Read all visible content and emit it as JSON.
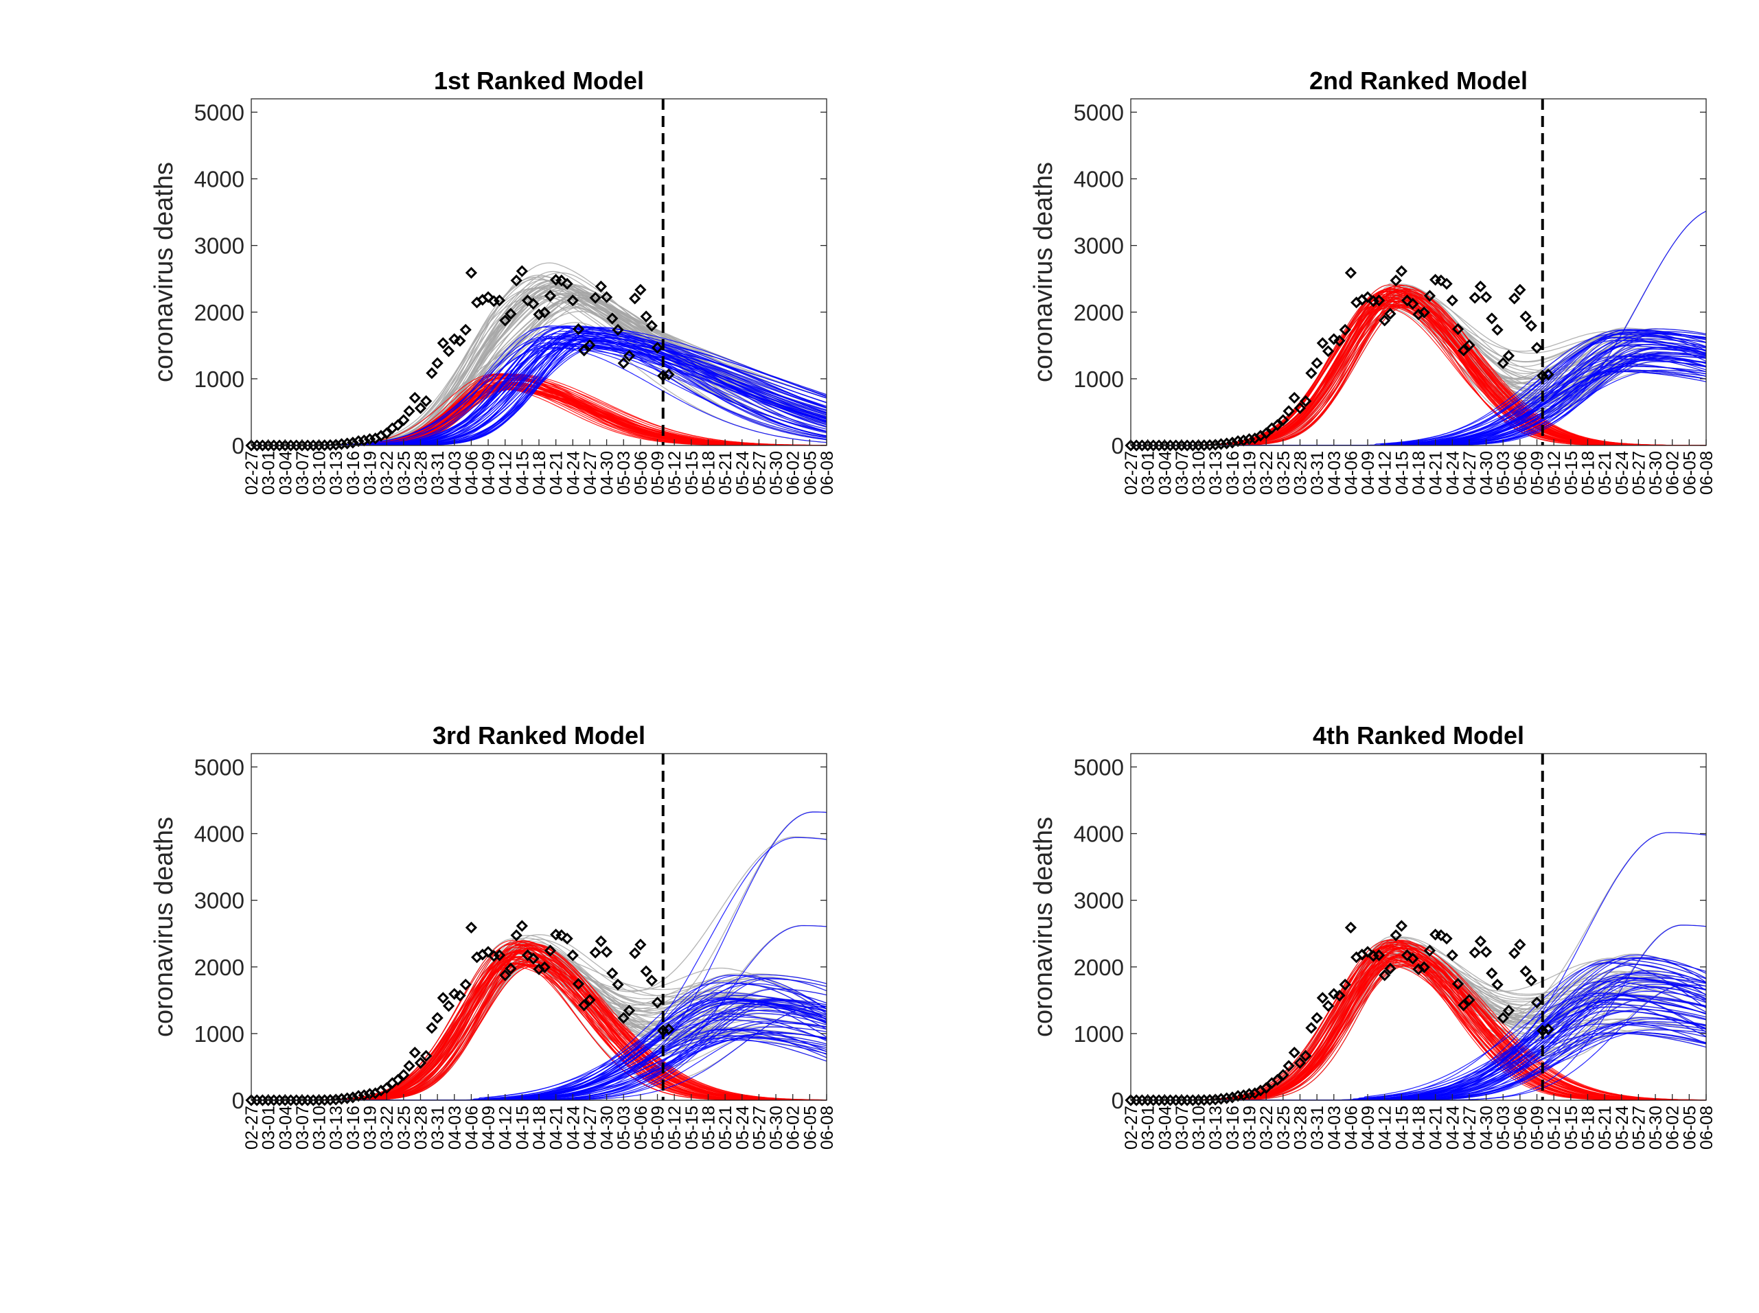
{
  "figure": {
    "background": "#ffffff",
    "colors": {
      "total": "#a6a6a6",
      "wave1": "#ff0000",
      "wave2": "#0000ff",
      "observed": "#000000",
      "cutoff": "#000000"
    }
  },
  "chart_data": [
    {
      "type": "line",
      "title": "1st Ranked Model",
      "ylabel": "coronavirus deaths",
      "xlabel": "",
      "ylim": [
        0,
        5200
      ],
      "yticks": [
        0,
        1000,
        2000,
        3000,
        4000,
        5000
      ],
      "xticklabels": [
        "02-27",
        "03-01",
        "03-04",
        "03-07",
        "03-10",
        "03-13",
        "03-16",
        "03-19",
        "03-22",
        "03-25",
        "03-28",
        "03-31",
        "04-03",
        "04-06",
        "04-09",
        "04-12",
        "04-15",
        "04-18",
        "04-21",
        "04-24",
        "04-27",
        "04-30",
        "05-03",
        "05-06",
        "05-09",
        "05-12",
        "05-15",
        "05-18",
        "05-21",
        "05-24",
        "05-27",
        "05-30",
        "06-02",
        "06-05",
        "06-08"
      ],
      "cutoff_day": 73,
      "grid": false,
      "legend": "none",
      "ensemble_size": 55,
      "series": [
        {
          "role": "wave1",
          "color": "#ff0000",
          "peak_day": 45,
          "peak_value": 930,
          "peak_spread": [
            820,
            1080
          ],
          "rise_width": 8,
          "decay_width": 14,
          "extra_tail_frac": 0.0
        },
        {
          "role": "wave2",
          "color": "#0000ff",
          "onset_day": 0,
          "peak_day": 57,
          "peak_value": 1620,
          "peak_spread": [
            1450,
            1800
          ],
          "rise_width": 10,
          "decay_width": 26,
          "extra_tail_frac": 0.0
        }
      ],
      "observed": {
        "day": [
          0,
          1,
          2,
          3,
          4,
          5,
          6,
          7,
          8,
          9,
          10,
          11,
          12,
          13,
          14,
          15,
          16,
          17,
          18,
          19,
          20,
          21,
          22,
          23,
          24,
          25,
          26,
          27,
          28,
          29,
          30,
          31,
          32,
          33,
          34,
          35,
          36,
          37,
          38,
          39,
          40,
          41,
          42,
          43,
          44,
          45,
          46,
          47,
          48,
          49,
          50,
          51,
          52,
          53,
          54,
          55,
          56,
          57,
          58,
          59,
          60,
          61,
          62,
          63,
          64,
          65,
          66,
          67,
          68,
          69,
          70,
          71,
          72,
          73,
          74
        ],
        "value": [
          0,
          0,
          0,
          0,
          0,
          0,
          0,
          0,
          0,
          0,
          0,
          0,
          1,
          2,
          5,
          10,
          21,
          30,
          43,
          65,
          75,
          95,
          105,
          145,
          183,
          258,
          306,
          380,
          515,
          715,
          560,
          665,
          1085,
          1235,
          1535,
          1415,
          1595,
          1570,
          1735,
          2590,
          2145,
          2185,
          2225,
          2165,
          2175,
          1875,
          1975,
          2475,
          2615,
          2175,
          2125,
          1965,
          1995,
          2245,
          2485,
          2475,
          2425,
          2175,
          1745,
          1425,
          1505,
          2215,
          2385,
          2225,
          1905,
          1735,
          1235,
          1345,
          2205,
          2335,
          1935,
          1795,
          1465,
          1045,
          1065
        ]
      }
    },
    {
      "type": "line",
      "title": "2nd Ranked Model",
      "ylabel": "coronavirus deaths",
      "xlabel": "",
      "ylim": [
        0,
        5200
      ],
      "yticks": [
        0,
        1000,
        2000,
        3000,
        4000,
        5000
      ],
      "xticklabels": [
        "02-27",
        "03-01",
        "03-04",
        "03-07",
        "03-10",
        "03-13",
        "03-16",
        "03-19",
        "03-22",
        "03-25",
        "03-28",
        "03-31",
        "04-03",
        "04-06",
        "04-09",
        "04-12",
        "04-15",
        "04-18",
        "04-21",
        "04-24",
        "04-27",
        "04-30",
        "05-03",
        "05-06",
        "05-09",
        "05-12",
        "05-15",
        "05-18",
        "05-21",
        "05-24",
        "05-27",
        "05-30",
        "06-02",
        "06-05",
        "06-08"
      ],
      "cutoff_day": 73,
      "grid": false,
      "legend": "none",
      "ensemble_size": 55,
      "series": [
        {
          "role": "wave1",
          "color": "#ff0000",
          "peak_day": 47,
          "peak_value": 2250,
          "peak_spread": [
            2050,
            2420
          ],
          "rise_width": 9,
          "decay_width": 12,
          "extra_tail_frac": 0.0
        },
        {
          "role": "wave2",
          "color": "#0000ff",
          "onset_day": 45,
          "peak_day": 90,
          "peak_value": 1450,
          "peak_spread": [
            1100,
            1750
          ],
          "rise_width": 13,
          "decay_width": 30,
          "extra_tail_frac": 0.06
        }
      ],
      "observed": {
        "day": [
          0,
          1,
          2,
          3,
          4,
          5,
          6,
          7,
          8,
          9,
          10,
          11,
          12,
          13,
          14,
          15,
          16,
          17,
          18,
          19,
          20,
          21,
          22,
          23,
          24,
          25,
          26,
          27,
          28,
          29,
          30,
          31,
          32,
          33,
          34,
          35,
          36,
          37,
          38,
          39,
          40,
          41,
          42,
          43,
          44,
          45,
          46,
          47,
          48,
          49,
          50,
          51,
          52,
          53,
          54,
          55,
          56,
          57,
          58,
          59,
          60,
          61,
          62,
          63,
          64,
          65,
          66,
          67,
          68,
          69,
          70,
          71,
          72,
          73,
          74
        ],
        "value": [
          0,
          0,
          0,
          0,
          0,
          0,
          0,
          0,
          0,
          0,
          0,
          0,
          1,
          2,
          5,
          10,
          21,
          30,
          43,
          65,
          75,
          95,
          105,
          145,
          183,
          258,
          306,
          380,
          515,
          715,
          560,
          665,
          1085,
          1235,
          1535,
          1415,
          1595,
          1570,
          1735,
          2590,
          2145,
          2185,
          2225,
          2165,
          2175,
          1875,
          1975,
          2475,
          2615,
          2175,
          2125,
          1965,
          1995,
          2245,
          2485,
          2475,
          2425,
          2175,
          1745,
          1425,
          1505,
          2215,
          2385,
          2225,
          1905,
          1735,
          1235,
          1345,
          2205,
          2335,
          1935,
          1795,
          1465,
          1045,
          1065
        ]
      }
    },
    {
      "type": "line",
      "title": "3rd Ranked Model",
      "ylabel": "coronavirus deaths",
      "xlabel": "",
      "ylim": [
        0,
        5200
      ],
      "yticks": [
        0,
        1000,
        2000,
        3000,
        4000,
        5000
      ],
      "xticklabels": [
        "02-27",
        "03-01",
        "03-04",
        "03-07",
        "03-10",
        "03-13",
        "03-16",
        "03-19",
        "03-22",
        "03-25",
        "03-28",
        "03-31",
        "04-03",
        "04-06",
        "04-09",
        "04-12",
        "04-15",
        "04-18",
        "04-21",
        "04-24",
        "04-27",
        "04-30",
        "05-03",
        "05-06",
        "05-09",
        "05-12",
        "05-15",
        "05-18",
        "05-21",
        "05-24",
        "05-27",
        "05-30",
        "06-02",
        "06-05",
        "06-08"
      ],
      "cutoff_day": 73,
      "grid": false,
      "legend": "none",
      "ensemble_size": 55,
      "series": [
        {
          "role": "wave1",
          "color": "#ff0000",
          "peak_day": 48,
          "peak_value": 2200,
          "peak_spread": [
            2000,
            2400
          ],
          "rise_width": 9,
          "decay_width": 13,
          "extra_tail_frac": 0.0
        },
        {
          "role": "wave2",
          "color": "#0000ff",
          "onset_day": 40,
          "peak_day": 88,
          "peak_value": 1500,
          "peak_spread": [
            900,
            1900
          ],
          "rise_width": 14,
          "decay_width": 24,
          "extra_tail_frac": 0.05
        }
      ],
      "observed": {
        "day": [
          0,
          1,
          2,
          3,
          4,
          5,
          6,
          7,
          8,
          9,
          10,
          11,
          12,
          13,
          14,
          15,
          16,
          17,
          18,
          19,
          20,
          21,
          22,
          23,
          24,
          25,
          26,
          27,
          28,
          29,
          30,
          31,
          32,
          33,
          34,
          35,
          36,
          37,
          38,
          39,
          40,
          41,
          42,
          43,
          44,
          45,
          46,
          47,
          48,
          49,
          50,
          51,
          52,
          53,
          54,
          55,
          56,
          57,
          58,
          59,
          60,
          61,
          62,
          63,
          64,
          65,
          66,
          67,
          68,
          69,
          70,
          71,
          72,
          73,
          74
        ],
        "value": [
          0,
          0,
          0,
          0,
          0,
          0,
          0,
          0,
          0,
          0,
          0,
          0,
          1,
          2,
          5,
          10,
          21,
          30,
          43,
          65,
          75,
          95,
          105,
          145,
          183,
          258,
          306,
          380,
          515,
          715,
          560,
          665,
          1085,
          1235,
          1535,
          1415,
          1595,
          1570,
          1735,
          2590,
          2145,
          2185,
          2225,
          2165,
          2175,
          1875,
          1975,
          2475,
          2615,
          2175,
          2125,
          1965,
          1995,
          2245,
          2485,
          2475,
          2425,
          2175,
          1745,
          1425,
          1505,
          2215,
          2385,
          2225,
          1905,
          1735,
          1235,
          1345,
          2205,
          2335,
          1935,
          1795,
          1465,
          1045,
          1065
        ]
      }
    },
    {
      "type": "line",
      "title": "4th Ranked Model",
      "ylabel": "coronavirus deaths",
      "xlabel": "",
      "ylim": [
        0,
        5200
      ],
      "yticks": [
        0,
        1000,
        2000,
        3000,
        4000,
        5000
      ],
      "xticklabels": [
        "02-27",
        "03-01",
        "03-04",
        "03-07",
        "03-10",
        "03-13",
        "03-16",
        "03-19",
        "03-22",
        "03-25",
        "03-28",
        "03-31",
        "04-03",
        "04-06",
        "04-09",
        "04-12",
        "04-15",
        "04-18",
        "04-21",
        "04-24",
        "04-27",
        "04-30",
        "05-03",
        "05-06",
        "05-09",
        "05-12",
        "05-15",
        "05-18",
        "05-21",
        "05-24",
        "05-27",
        "05-30",
        "06-02",
        "06-05",
        "06-08"
      ],
      "cutoff_day": 73,
      "grid": false,
      "legend": "none",
      "ensemble_size": 55,
      "series": [
        {
          "role": "wave1",
          "color": "#ff0000",
          "peak_day": 47,
          "peak_value": 2200,
          "peak_spread": [
            2000,
            2420
          ],
          "rise_width": 9,
          "decay_width": 13,
          "extra_tail_frac": 0.0
        },
        {
          "role": "wave2",
          "color": "#0000ff",
          "onset_day": 40,
          "peak_day": 88,
          "peak_value": 1600,
          "peak_spread": [
            1000,
            2200
          ],
          "rise_width": 14,
          "decay_width": 26,
          "extra_tail_frac": 0.1
        }
      ],
      "observed": {
        "day": [
          0,
          1,
          2,
          3,
          4,
          5,
          6,
          7,
          8,
          9,
          10,
          11,
          12,
          13,
          14,
          15,
          16,
          17,
          18,
          19,
          20,
          21,
          22,
          23,
          24,
          25,
          26,
          27,
          28,
          29,
          30,
          31,
          32,
          33,
          34,
          35,
          36,
          37,
          38,
          39,
          40,
          41,
          42,
          43,
          44,
          45,
          46,
          47,
          48,
          49,
          50,
          51,
          52,
          53,
          54,
          55,
          56,
          57,
          58,
          59,
          60,
          61,
          62,
          63,
          64,
          65,
          66,
          67,
          68,
          69,
          70,
          71,
          72,
          73,
          74
        ],
        "value": [
          0,
          0,
          0,
          0,
          0,
          0,
          0,
          0,
          0,
          0,
          0,
          0,
          1,
          2,
          5,
          10,
          21,
          30,
          43,
          65,
          75,
          95,
          105,
          145,
          183,
          258,
          306,
          380,
          515,
          715,
          560,
          665,
          1085,
          1235,
          1535,
          1415,
          1595,
          1570,
          1735,
          2590,
          2145,
          2185,
          2225,
          2165,
          2175,
          1875,
          1975,
          2475,
          2615,
          2175,
          2125,
          1965,
          1995,
          2245,
          2485,
          2475,
          2425,
          2175,
          1745,
          1425,
          1505,
          2215,
          2385,
          2225,
          1905,
          1735,
          1235,
          1345,
          2205,
          2335,
          1935,
          1795,
          1465,
          1045,
          1065
        ]
      }
    }
  ]
}
